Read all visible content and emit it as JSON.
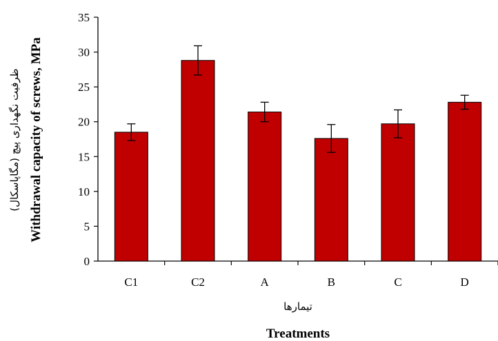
{
  "chart_data": {
    "type": "bar",
    "categories": [
      "C1",
      "C2",
      "A",
      "B",
      "C",
      "D"
    ],
    "values": [
      18.5,
      28.8,
      21.4,
      17.6,
      19.7,
      22.8
    ],
    "errors": [
      1.2,
      2.1,
      1.4,
      2.0,
      2.0,
      1.0
    ],
    "ylim": [
      0,
      35
    ],
    "yticks": [
      0,
      5,
      10,
      15,
      20,
      25,
      30,
      35
    ],
    "ylabel": "Withdrawal capacity of screws, MPa",
    "ylabel_secondary": "ظرفیت نگهداری پیچ (مگاپاسکال)",
    "xlabel": "Treatments",
    "xlabel_secondary": "تیمارها",
    "bar_color": "#c00000",
    "grid": false,
    "legend": "none"
  }
}
